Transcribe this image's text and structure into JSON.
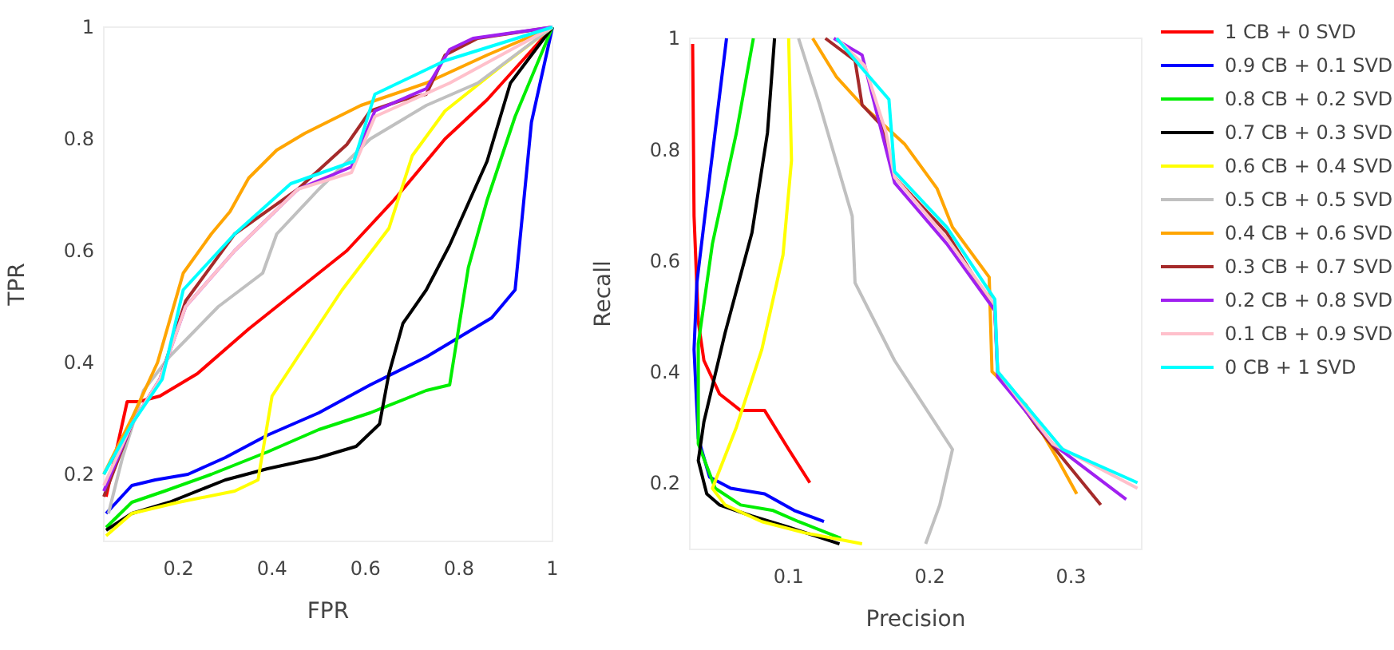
{
  "chart_data": [
    {
      "type": "line",
      "xlabel": "FPR",
      "ylabel": "TPR",
      "xlim": [
        0.04,
        1
      ],
      "ylim": [
        0.08,
        1
      ],
      "xticks": [
        0.2,
        0.4,
        0.6,
        0.8,
        1
      ],
      "yticks": [
        0.2,
        0.4,
        0.6,
        0.8,
        1
      ],
      "legend": false,
      "series": [
        {
          "color": "#ff0000",
          "x": [
            0.045,
            0.09,
            0.115,
            0.16,
            0.24,
            0.35,
            0.455,
            0.56,
            0.66,
            0.77,
            0.86,
            1
          ],
          "values": [
            0.16,
            0.33,
            0.33,
            0.34,
            0.38,
            0.46,
            0.53,
            0.6,
            0.69,
            0.8,
            0.87,
            1
          ]
        },
        {
          "color": "#0000ff",
          "x": [
            0.045,
            0.1,
            0.15,
            0.22,
            0.3,
            0.39,
            0.5,
            0.61,
            0.73,
            0.81,
            0.87,
            0.92,
            0.955,
            1
          ],
          "values": [
            0.13,
            0.18,
            0.19,
            0.2,
            0.23,
            0.27,
            0.31,
            0.36,
            0.41,
            0.45,
            0.48,
            0.53,
            0.83,
            1
          ]
        },
        {
          "color": "#00ee00",
          "x": [
            0.045,
            0.1,
            0.17,
            0.27,
            0.39,
            0.5,
            0.61,
            0.73,
            0.78,
            0.82,
            0.86,
            0.92,
            1
          ],
          "values": [
            0.105,
            0.15,
            0.17,
            0.2,
            0.24,
            0.28,
            0.31,
            0.35,
            0.36,
            0.57,
            0.69,
            0.84,
            1
          ]
        },
        {
          "color": "#000000",
          "x": [
            0.045,
            0.1,
            0.18,
            0.3,
            0.39,
            0.5,
            0.58,
            0.63,
            0.65,
            0.68,
            0.73,
            0.78,
            0.86,
            0.91,
            1
          ],
          "values": [
            0.1,
            0.13,
            0.15,
            0.19,
            0.21,
            0.23,
            0.25,
            0.29,
            0.38,
            0.47,
            0.53,
            0.61,
            0.76,
            0.9,
            1
          ]
        },
        {
          "color": "#ffff00",
          "x": [
            0.045,
            0.1,
            0.2,
            0.32,
            0.37,
            0.4,
            0.455,
            0.55,
            0.65,
            0.7,
            0.77,
            0.89,
            1
          ],
          "values": [
            0.09,
            0.13,
            0.15,
            0.17,
            0.19,
            0.34,
            0.41,
            0.53,
            0.64,
            0.77,
            0.85,
            0.93,
            1
          ]
        },
        {
          "color": "#c0c0c0",
          "x": [
            0.05,
            0.08,
            0.125,
            0.18,
            0.285,
            0.38,
            0.41,
            0.5,
            0.61,
            0.73,
            0.84,
            1
          ],
          "values": [
            0.13,
            0.23,
            0.35,
            0.41,
            0.5,
            0.56,
            0.63,
            0.71,
            0.8,
            0.86,
            0.9,
            1
          ]
        },
        {
          "color": "#ffa500",
          "x": [
            0.04,
            0.1,
            0.155,
            0.21,
            0.27,
            0.31,
            0.35,
            0.41,
            0.47,
            0.59,
            0.73,
            0.86,
            1
          ],
          "values": [
            0.2,
            0.3,
            0.4,
            0.56,
            0.63,
            0.67,
            0.73,
            0.78,
            0.81,
            0.86,
            0.9,
            0.95,
            1
          ]
        },
        {
          "color": "#a52a2a",
          "x": [
            0.04,
            0.1,
            0.16,
            0.215,
            0.32,
            0.455,
            0.56,
            0.61,
            0.68,
            0.73,
            0.77,
            0.84,
            1
          ],
          "values": [
            0.16,
            0.29,
            0.37,
            0.51,
            0.63,
            0.71,
            0.79,
            0.85,
            0.87,
            0.88,
            0.95,
            0.98,
            1
          ]
        },
        {
          "color": "#a020f0",
          "x": [
            0.04,
            0.1,
            0.16,
            0.215,
            0.32,
            0.455,
            0.57,
            0.62,
            0.73,
            0.78,
            0.83,
            1
          ],
          "values": [
            0.17,
            0.29,
            0.37,
            0.5,
            0.6,
            0.71,
            0.75,
            0.85,
            0.89,
            0.96,
            0.98,
            1
          ]
        },
        {
          "color": "#ffc0cb",
          "x": [
            0.04,
            0.1,
            0.16,
            0.215,
            0.32,
            0.455,
            0.57,
            0.62,
            0.78,
            1
          ],
          "values": [
            0.18,
            0.29,
            0.37,
            0.5,
            0.6,
            0.71,
            0.74,
            0.84,
            0.9,
            1
          ]
        },
        {
          "color": "#00ffff",
          "x": [
            0.04,
            0.1,
            0.165,
            0.21,
            0.32,
            0.44,
            0.575,
            0.62,
            0.77,
            1
          ],
          "values": [
            0.2,
            0.29,
            0.37,
            0.53,
            0.63,
            0.72,
            0.76,
            0.88,
            0.94,
            1
          ]
        }
      ]
    },
    {
      "type": "line",
      "xlabel": "Precision",
      "ylabel": "Recall",
      "xlim": [
        0.03,
        0.35
      ],
      "ylim": [
        0.08,
        1
      ],
      "xticks": [
        0.1,
        0.2,
        0.3
      ],
      "yticks": [
        0.2,
        0.4,
        0.6,
        0.8,
        1
      ],
      "legend": "right",
      "series": [
        {
          "name": "1 CB + 0 SVD",
          "color": "#ff0000",
          "x": [
            0.032,
            0.033,
            0.036,
            0.04,
            0.051,
            0.066,
            0.083,
            0.1,
            0.115
          ],
          "values": [
            0.99,
            0.68,
            0.49,
            0.42,
            0.36,
            0.33,
            0.33,
            0.26,
            0.2
          ]
        },
        {
          "name": "0.9 CB + 0.1 SVD",
          "color": "#0000ff",
          "x": [
            0.056,
            0.044,
            0.035,
            0.033,
            0.036,
            0.044,
            0.059,
            0.083,
            0.104,
            0.125
          ],
          "values": [
            1,
            0.75,
            0.56,
            0.44,
            0.28,
            0.21,
            0.19,
            0.18,
            0.15,
            0.13
          ]
        },
        {
          "name": "0.8 CB + 0.2 SVD",
          "color": "#00ee00",
          "x": [
            0.075,
            0.063,
            0.046,
            0.036,
            0.036,
            0.048,
            0.066,
            0.089,
            0.107,
            0.137
          ],
          "values": [
            1,
            0.83,
            0.63,
            0.45,
            0.27,
            0.19,
            0.16,
            0.15,
            0.13,
            0.1
          ]
        },
        {
          "name": "0.7 CB + 0.3 SVD",
          "color": "#000000",
          "x": [
            0.09,
            0.085,
            0.074,
            0.055,
            0.04,
            0.036,
            0.042,
            0.051,
            0.074,
            0.1,
            0.136
          ],
          "values": [
            1,
            0.83,
            0.65,
            0.47,
            0.31,
            0.24,
            0.18,
            0.16,
            0.14,
            0.12,
            0.09
          ]
        },
        {
          "name": "0.6 CB + 0.4 SVD",
          "color": "#ffff00",
          "x": [
            0.1,
            0.102,
            0.096,
            0.081,
            0.063,
            0.046,
            0.055,
            0.081,
            0.111,
            0.152
          ],
          "values": [
            1,
            0.78,
            0.61,
            0.44,
            0.3,
            0.19,
            0.16,
            0.13,
            0.11,
            0.09
          ]
        },
        {
          "name": "0.5 CB + 0.5 SVD",
          "color": "#c0c0c0",
          "x": [
            0.107,
            0.122,
            0.145,
            0.147,
            0.175,
            0.216,
            0.207,
            0.197
          ],
          "values": [
            1,
            0.88,
            0.68,
            0.56,
            0.42,
            0.26,
            0.16,
            0.09
          ]
        },
        {
          "name": "0.4 CB + 0.6 SVD",
          "color": "#ffa500",
          "x": [
            0.117,
            0.134,
            0.152,
            0.182,
            0.205,
            0.216,
            0.242,
            0.244,
            0.268,
            0.291,
            0.304
          ],
          "values": [
            1,
            0.93,
            0.88,
            0.81,
            0.73,
            0.66,
            0.57,
            0.4,
            0.34,
            0.24,
            0.18
          ]
        },
        {
          "name": "0.3 CB + 0.7 SVD",
          "color": "#a52a2a",
          "x": [
            0.126,
            0.147,
            0.152,
            0.167,
            0.175,
            0.212,
            0.246,
            0.248,
            0.276,
            0.321
          ],
          "values": [
            1,
            0.96,
            0.88,
            0.84,
            0.75,
            0.65,
            0.51,
            0.4,
            0.3,
            0.16
          ]
        },
        {
          "name": "0.2 CB + 0.8 SVD",
          "color": "#a020f0",
          "x": [
            0.132,
            0.152,
            0.16,
            0.175,
            0.212,
            0.246,
            0.248,
            0.287,
            0.339
          ],
          "values": [
            1,
            0.97,
            0.89,
            0.74,
            0.63,
            0.51,
            0.39,
            0.27,
            0.17
          ]
        },
        {
          "name": "0.1 CB + 0.9 SVD",
          "color": "#ffc0cb",
          "x": [
            0.134,
            0.154,
            0.169,
            0.175,
            0.212,
            0.246,
            0.248,
            0.287,
            0.347
          ],
          "values": [
            1,
            0.95,
            0.83,
            0.75,
            0.64,
            0.52,
            0.4,
            0.27,
            0.19
          ]
        },
        {
          "name": "0 CB + 1 SVD",
          "color": "#00ffff",
          "x": [
            0.134,
            0.154,
            0.171,
            0.175,
            0.212,
            0.246,
            0.248,
            0.294,
            0.347
          ],
          "values": [
            1,
            0.94,
            0.89,
            0.76,
            0.66,
            0.53,
            0.4,
            0.26,
            0.2
          ]
        }
      ]
    }
  ]
}
